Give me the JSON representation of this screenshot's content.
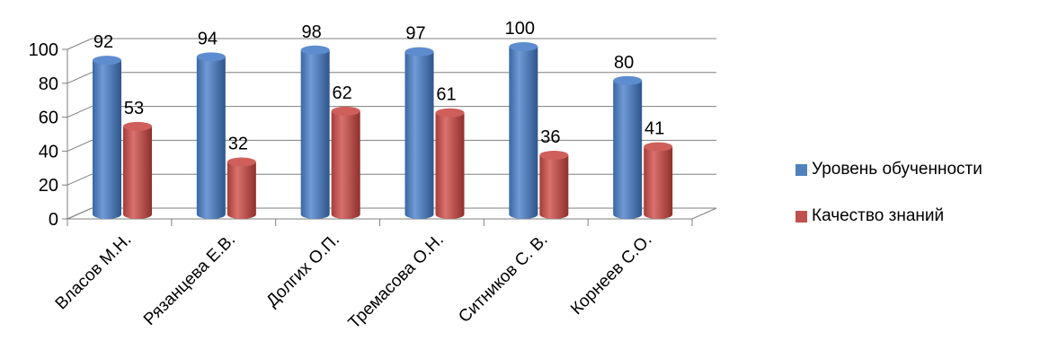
{
  "chart_data": {
    "type": "bar",
    "categories": [
      "Власов М.Н.",
      "Рязанцева Е.В.",
      "Долгих О.П.",
      "Тремасова О.Н.",
      "Ситников С. В.",
      "Корнеев С.О."
    ],
    "series": [
      {
        "name": "Уровень обученности",
        "values": [
          92,
          94,
          98,
          97,
          100,
          80
        ],
        "color": "#4F81BD"
      },
      {
        "name": "Качество знаний",
        "values": [
          53,
          32,
          62,
          61,
          36,
          41
        ],
        "color": "#C0504D"
      }
    ],
    "ylim": [
      0,
      100
    ],
    "yticks": [
      0,
      20,
      40,
      60,
      80,
      100
    ],
    "grid": true,
    "legend": "right",
    "style": "3d-cylinder"
  }
}
